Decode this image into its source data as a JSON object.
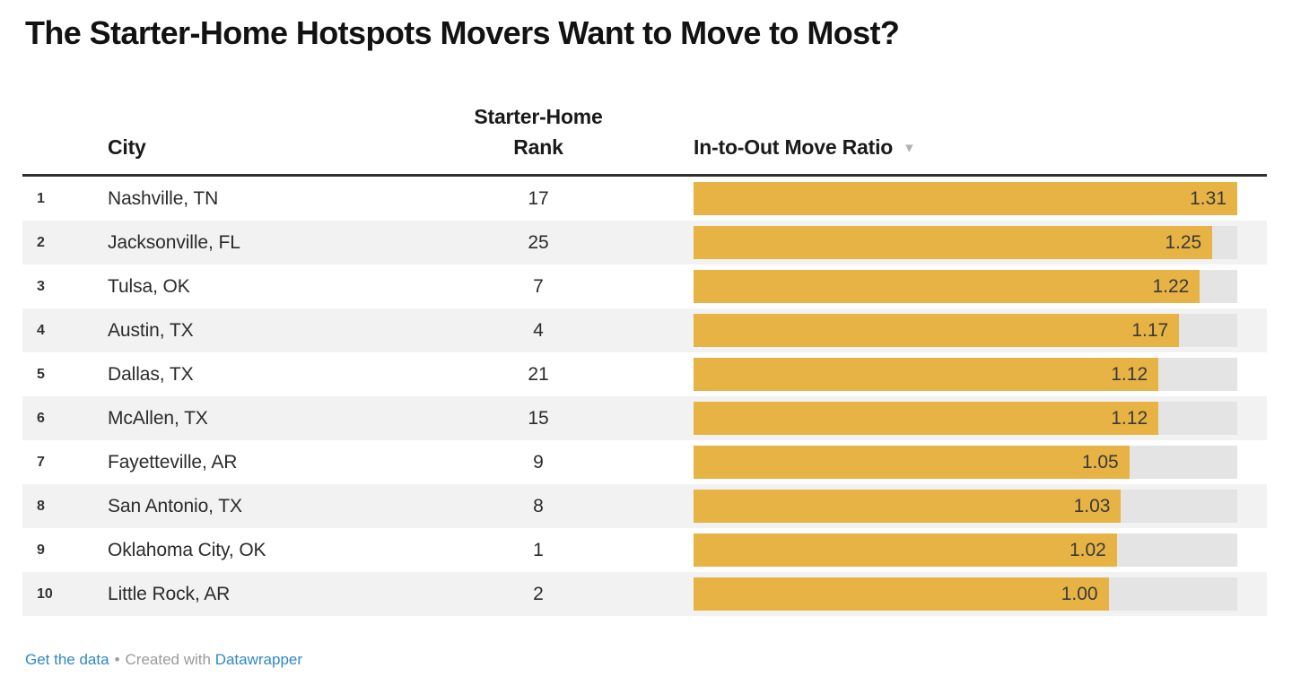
{
  "title": "The Starter-Home Hotspots Movers Want to Move to Most?",
  "columns": {
    "city_label": "City",
    "rank_label": "Starter-Home\nRank",
    "ratio_label": "In-to-Out Move Ratio",
    "sort_icon": "▾"
  },
  "rows": [
    {
      "index": "1",
      "city": "Nashville, TN",
      "rank": "17",
      "ratio": "1.31"
    },
    {
      "index": "2",
      "city": "Jacksonville, FL",
      "rank": "25",
      "ratio": "1.25"
    },
    {
      "index": "3",
      "city": "Tulsa, OK",
      "rank": "7",
      "ratio": "1.22"
    },
    {
      "index": "4",
      "city": "Austin, TX",
      "rank": "4",
      "ratio": "1.17"
    },
    {
      "index": "5",
      "city": "Dallas, TX",
      "rank": "21",
      "ratio": "1.12"
    },
    {
      "index": "6",
      "city": "McAllen, TX",
      "rank": "15",
      "ratio": "1.12"
    },
    {
      "index": "7",
      "city": "Fayetteville, AR",
      "rank": "9",
      "ratio": "1.05"
    },
    {
      "index": "8",
      "city": "San Antonio, TX",
      "rank": "8",
      "ratio": "1.03"
    },
    {
      "index": "9",
      "city": "Oklahoma City, OK",
      "rank": "1",
      "ratio": "1.02"
    },
    {
      "index": "10",
      "city": "Little Rock, AR",
      "rank": "2",
      "ratio": "1.00"
    }
  ],
  "chart_data": {
    "type": "bar",
    "orientation": "horizontal",
    "title": "The Starter-Home Hotspots Movers Want to Move to Most?",
    "categories": [
      "Nashville, TN",
      "Jacksonville, FL",
      "Tulsa, OK",
      "Austin, TX",
      "Dallas, TX",
      "McAllen, TX",
      "Fayetteville, AR",
      "San Antonio, TX",
      "Oklahoma City, OK",
      "Little Rock, AR"
    ],
    "series": [
      {
        "name": "Starter-Home Rank",
        "values": [
          17,
          25,
          7,
          4,
          21,
          15,
          9,
          8,
          1,
          2
        ]
      },
      {
        "name": "In-to-Out Move Ratio",
        "values": [
          1.31,
          1.25,
          1.22,
          1.17,
          1.12,
          1.12,
          1.05,
          1.03,
          1.02,
          1.0
        ]
      }
    ],
    "xlim": [
      0,
      1.31
    ],
    "value_labels": "inside-end",
    "sorted_by": "In-to-Out Move Ratio",
    "sort_direction": "descending",
    "grid": false,
    "legend_position": "none"
  },
  "colors": {
    "bar": "#e7b344",
    "bar_track": "#e4e4e4",
    "row_stripe": "#f2f2f2",
    "link_blue": "#3188c2",
    "header_rule": "#2e2e2e"
  },
  "footer": {
    "get_data_label": "Get the data",
    "separator": "•",
    "created_with_label": "Created with",
    "brand_label": "Datawrapper"
  }
}
